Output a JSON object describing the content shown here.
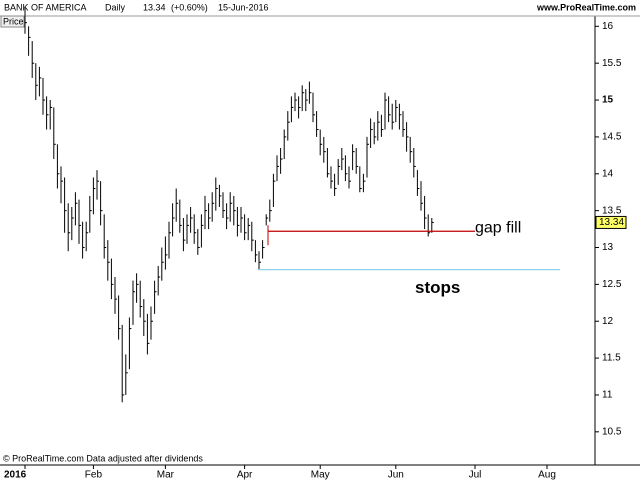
{
  "header": {
    "name": "BANK OF AMERICA",
    "period": "Daily",
    "change": "(+0.60%)",
    "date": "15-Jun-2016",
    "site": "www.ProRealTime.com"
  },
  "footer": "© ProRealTime.com Data adjusted after dividends",
  "panel_label": "Price",
  "chart_data": {
    "type": "ohlc",
    "series": [
      {
        "color": "#000000",
        "high": [
          16.25,
          16.0,
          15.8,
          15.5,
          15.45,
          15.3,
          15.05,
          15.0,
          14.9,
          14.4,
          14.1,
          13.95,
          13.6,
          13.55,
          13.75,
          13.65,
          13.35,
          13.35,
          13.7,
          13.95,
          14.05,
          13.9,
          13.45,
          13.1,
          12.85,
          12.6,
          12.35,
          11.95,
          11.55,
          12.05,
          12.55,
          12.65,
          12.55,
          12.3,
          12.1,
          12.2,
          12.55,
          12.75,
          13.0,
          13.15,
          13.35,
          13.6,
          13.8,
          13.65,
          13.4,
          13.45,
          13.55,
          13.45,
          13.25,
          13.45,
          13.7,
          13.6,
          13.75,
          13.95,
          13.85,
          13.75,
          13.6,
          13.75,
          13.7,
          13.55,
          13.55,
          13.45,
          13.4,
          13.35,
          13.1,
          12.95,
          13.1,
          13.45,
          13.65,
          14.0,
          14.25,
          14.35,
          14.6,
          14.85,
          15.05,
          15.1,
          15.05,
          15.2,
          15.15,
          15.25,
          15.1,
          14.85,
          14.6,
          14.5,
          14.35,
          14.1,
          14.0,
          14.2,
          14.35,
          14.25,
          14.1,
          14.4,
          14.35,
          14.1,
          14.0,
          14.5,
          14.75,
          14.7,
          14.85,
          14.8,
          15.1,
          15.05,
          14.95,
          15.0,
          14.95,
          14.85,
          14.7,
          14.5,
          14.35,
          14.05,
          13.9,
          13.7,
          13.45,
          13.4
        ],
        "low": [
          15.9,
          15.6,
          15.3,
          15.0,
          15.05,
          14.8,
          14.6,
          14.6,
          14.2,
          13.8,
          13.6,
          13.2,
          12.95,
          13.1,
          13.3,
          13.05,
          12.85,
          12.95,
          13.2,
          13.45,
          13.65,
          13.3,
          12.85,
          12.55,
          12.3,
          12.1,
          11.75,
          10.9,
          11.0,
          11.35,
          11.95,
          12.25,
          12.05,
          11.8,
          11.55,
          11.75,
          12.1,
          12.35,
          12.55,
          12.7,
          12.85,
          13.15,
          13.35,
          13.2,
          12.95,
          13.05,
          13.2,
          13.05,
          12.9,
          13.0,
          13.25,
          13.25,
          13.35,
          13.5,
          13.55,
          13.4,
          13.25,
          13.35,
          13.3,
          13.15,
          13.2,
          13.1,
          13.1,
          12.95,
          12.8,
          12.7,
          12.85,
          13.3,
          13.35,
          13.55,
          13.9,
          14.0,
          14.2,
          14.45,
          14.7,
          14.85,
          14.75,
          14.85,
          14.85,
          14.95,
          14.7,
          14.5,
          14.25,
          14.15,
          13.95,
          13.8,
          13.7,
          13.85,
          14.05,
          13.9,
          13.8,
          14.05,
          14.0,
          13.75,
          13.75,
          13.95,
          14.35,
          14.4,
          14.45,
          14.5,
          14.6,
          14.7,
          14.6,
          14.7,
          14.6,
          14.5,
          14.3,
          14.15,
          13.95,
          13.7,
          13.5,
          13.25,
          13.15,
          13.2
        ],
        "close": [
          16.05,
          15.85,
          15.5,
          15.2,
          15.3,
          15.0,
          14.8,
          14.9,
          14.4,
          14.0,
          13.9,
          13.5,
          13.2,
          13.4,
          13.6,
          13.3,
          13.0,
          13.2,
          13.5,
          13.8,
          13.9,
          13.5,
          13.0,
          12.8,
          12.5,
          12.3,
          11.9,
          11.0,
          11.3,
          11.9,
          12.4,
          12.5,
          12.2,
          12.0,
          11.7,
          12.0,
          12.4,
          12.6,
          12.8,
          12.9,
          13.2,
          13.4,
          13.6,
          13.3,
          13.1,
          13.3,
          13.4,
          13.2,
          13.0,
          13.3,
          13.5,
          13.4,
          13.6,
          13.8,
          13.7,
          13.5,
          13.4,
          13.6,
          13.5,
          13.3,
          13.4,
          13.2,
          13.3,
          13.1,
          12.9,
          12.8,
          13.0,
          13.4,
          13.5,
          13.9,
          14.1,
          14.2,
          14.5,
          14.7,
          14.9,
          15.0,
          14.9,
          15.1,
          15.0,
          15.1,
          14.8,
          14.6,
          14.4,
          14.3,
          14.0,
          13.9,
          13.8,
          14.1,
          14.2,
          14.0,
          13.9,
          14.3,
          14.1,
          13.8,
          13.9,
          14.4,
          14.6,
          14.5,
          14.7,
          14.6,
          15.0,
          14.8,
          14.7,
          14.9,
          14.8,
          14.6,
          14.5,
          14.3,
          14.1,
          13.8,
          13.6,
          13.4,
          13.2,
          13.34
        ]
      }
    ],
    "xticks": [
      {
        "value": 0,
        "label": "2016"
      },
      {
        "value": 19,
        "label": "Feb"
      },
      {
        "value": 39,
        "label": "Mar"
      },
      {
        "value": 61,
        "label": "Apr"
      },
      {
        "value": 82,
        "label": "May"
      },
      {
        "value": 103,
        "label": "Jun"
      },
      {
        "value": 125,
        "label": "Jul"
      },
      {
        "value": 145,
        "label": "Aug"
      }
    ],
    "ylim": [
      10.05,
      16.14
    ],
    "yticks": [
      10.5,
      11,
      11.5,
      12,
      12.5,
      13,
      13.5,
      14,
      14.5,
      15,
      15.5,
      16
    ],
    "lines": [
      {
        "value": 13.22,
        "label": "gap fill",
        "color": "#c00000"
      },
      {
        "value": 12.7,
        "label": "stops",
        "color": "#0000dd"
      }
    ],
    "current_price_color": "#ffff66"
  }
}
